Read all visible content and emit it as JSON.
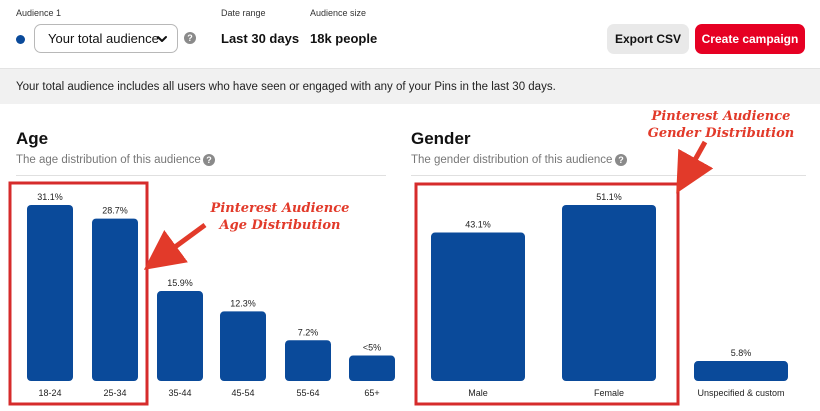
{
  "header": {
    "audience_label": "Audience 1",
    "audience_value": "Your total audience",
    "date_range_label": "Date range",
    "date_range_value": "Last 30 days",
    "audience_size_label": "Audience size",
    "audience_size_value": "18k people",
    "export_label": "Export CSV",
    "create_label": "Create campaign",
    "help_glyph": "?"
  },
  "info_text": "Your total audience includes all users who have seen or engaged with any of your Pins in the last 30 days.",
  "age": {
    "title": "Age",
    "subtitle": "The age distribution of this audience",
    "annotation": "Pinterest Audience\nAge Distribution"
  },
  "gender": {
    "title": "Gender",
    "subtitle": "The gender distribution of this audience",
    "annotation": "Pinterest Audience\nGender Distribution"
  },
  "colors": {
    "bar": "#0a4a9a",
    "highlight": "#d62b2b",
    "accent": "#e60023"
  },
  "chart_data": [
    {
      "type": "bar",
      "categories": [
        "18-24",
        "25-34",
        "35-44",
        "45-54",
        "55-64",
        "65+"
      ],
      "values": [
        31.1,
        28.7,
        15.9,
        12.3,
        7.2,
        4.5
      ],
      "labels": [
        "31.1%",
        "28.7%",
        "15.9%",
        "12.3%",
        "7.2%",
        "<5%"
      ],
      "ylim": [
        0,
        31.1
      ]
    },
    {
      "type": "bar",
      "categories": [
        "Male",
        "Female",
        "Unspecified & custom"
      ],
      "values": [
        43.1,
        51.1,
        5.8
      ],
      "labels": [
        "43.1%",
        "51.1%",
        "5.8%"
      ],
      "ylim": [
        0,
        51.1
      ]
    }
  ]
}
